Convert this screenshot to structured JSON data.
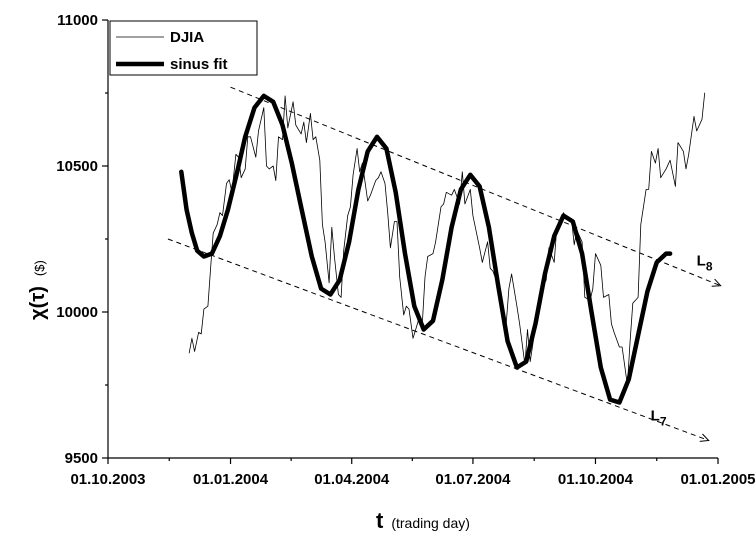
{
  "chart_data": {
    "type": "line",
    "title": "",
    "xlabel": {
      "symbol": "t",
      "text": "(trading day)"
    },
    "ylabel": {
      "symbol": "χ(τ)",
      "unit": "($)"
    },
    "xlim": [
      "2003-10-01",
      "2005-01-01"
    ],
    "ylim": [
      9500,
      11000
    ],
    "x_ticks": [
      "01.10.2003",
      "01.01.2004",
      "01.04.2004",
      "01.07.2004",
      "01.10.2004",
      "01.01.2005"
    ],
    "x_tick_dates": [
      "2003-10-01",
      "2004-01-01",
      "2004-04-01",
      "2004-07-01",
      "2004-10-01",
      "2005-01-01"
    ],
    "y_ticks": [
      "9500",
      "10000",
      "10500",
      "11000"
    ],
    "y_tick_values": [
      9500,
      10000,
      10500,
      11000
    ],
    "legend": {
      "placement": "top-left",
      "entries": [
        "DJIA",
        "sinus fit"
      ]
    },
    "series": [
      {
        "name": "DJIA",
        "style": "thin",
        "points": [
          [
            "2003-12-01",
            9860
          ],
          [
            "2003-12-03",
            9910
          ],
          [
            "2003-12-05",
            9865
          ],
          [
            "2003-12-08",
            9930
          ],
          [
            "2003-12-10",
            9925
          ],
          [
            "2003-12-12",
            10010
          ],
          [
            "2003-12-15",
            10020
          ],
          [
            "2003-12-17",
            10150
          ],
          [
            "2003-12-19",
            10270
          ],
          [
            "2003-12-22",
            10300
          ],
          [
            "2003-12-24",
            10340
          ],
          [
            "2003-12-26",
            10330
          ],
          [
            "2003-12-29",
            10440
          ],
          [
            "2003-12-31",
            10453
          ],
          [
            "2004-01-02",
            10410
          ],
          [
            "2004-01-05",
            10540
          ],
          [
            "2004-01-07",
            10530
          ],
          [
            "2004-01-09",
            10460
          ],
          [
            "2004-01-12",
            10490
          ],
          [
            "2004-01-14",
            10600
          ],
          [
            "2004-01-16",
            10600
          ],
          [
            "2004-01-20",
            10530
          ],
          [
            "2004-01-22",
            10620
          ],
          [
            "2004-01-26",
            10700
          ],
          [
            "2004-01-28",
            10500
          ],
          [
            "2004-01-30",
            10490
          ],
          [
            "2004-02-02",
            10500
          ],
          [
            "2004-02-04",
            10450
          ],
          [
            "2004-02-06",
            10600
          ],
          [
            "2004-02-09",
            10590
          ],
          [
            "2004-02-11",
            10740
          ],
          [
            "2004-02-13",
            10630
          ],
          [
            "2004-02-17",
            10720
          ],
          [
            "2004-02-19",
            10640
          ],
          [
            "2004-02-23",
            10610
          ],
          [
            "2004-02-25",
            10650
          ],
          [
            "2004-02-27",
            10580
          ],
          [
            "2004-03-01",
            10680
          ],
          [
            "2004-03-03",
            10590
          ],
          [
            "2004-03-05",
            10600
          ],
          [
            "2004-03-08",
            10520
          ],
          [
            "2004-03-10",
            10300
          ],
          [
            "2004-03-12",
            10240
          ],
          [
            "2004-03-15",
            10100
          ],
          [
            "2004-03-17",
            10290
          ],
          [
            "2004-03-19",
            10190
          ],
          [
            "2004-03-22",
            10060
          ],
          [
            "2004-03-24",
            10050
          ],
          [
            "2004-03-26",
            10210
          ],
          [
            "2004-03-29",
            10330
          ],
          [
            "2004-03-31",
            10360
          ],
          [
            "2004-04-02",
            10470
          ],
          [
            "2004-04-05",
            10560
          ],
          [
            "2004-04-07",
            10480
          ],
          [
            "2004-04-09",
            10510
          ],
          [
            "2004-04-13",
            10380
          ],
          [
            "2004-04-15",
            10400
          ],
          [
            "2004-04-19",
            10450
          ],
          [
            "2004-04-21",
            10460
          ],
          [
            "2004-04-23",
            10480
          ],
          [
            "2004-04-26",
            10440
          ],
          [
            "2004-04-28",
            10340
          ],
          [
            "2004-04-30",
            10220
          ],
          [
            "2004-05-03",
            10310
          ],
          [
            "2004-05-05",
            10310
          ],
          [
            "2004-05-07",
            10120
          ],
          [
            "2004-05-10",
            9990
          ],
          [
            "2004-05-12",
            10020
          ],
          [
            "2004-05-14",
            10010
          ],
          [
            "2004-05-17",
            9910
          ],
          [
            "2004-05-19",
            9940
          ],
          [
            "2004-05-21",
            9970
          ],
          [
            "2004-05-24",
            9960
          ],
          [
            "2004-05-26",
            10120
          ],
          [
            "2004-05-28",
            10190
          ],
          [
            "2004-06-01",
            10200
          ],
          [
            "2004-06-03",
            10240
          ],
          [
            "2004-06-07",
            10360
          ],
          [
            "2004-06-09",
            10370
          ],
          [
            "2004-06-11",
            10410
          ],
          [
            "2004-06-15",
            10400
          ],
          [
            "2004-06-17",
            10420
          ],
          [
            "2004-06-21",
            10370
          ],
          [
            "2004-06-23",
            10480
          ],
          [
            "2004-06-25",
            10370
          ],
          [
            "2004-06-29",
            10420
          ],
          [
            "2004-07-01",
            10330
          ],
          [
            "2004-07-06",
            10220
          ],
          [
            "2004-07-08",
            10170
          ],
          [
            "2004-07-12",
            10240
          ],
          [
            "2004-07-14",
            10150
          ],
          [
            "2004-07-16",
            10140
          ],
          [
            "2004-07-20",
            10090
          ],
          [
            "2004-07-22",
            10050
          ],
          [
            "2004-07-26",
            9960
          ],
          [
            "2004-07-28",
            10080
          ],
          [
            "2004-07-30",
            10130
          ],
          [
            "2004-08-03",
            10020
          ],
          [
            "2004-08-05",
            9960
          ],
          [
            "2004-08-09",
            9820
          ],
          [
            "2004-08-11",
            9940
          ],
          [
            "2004-08-13",
            9830
          ],
          [
            "2004-08-17",
            9950
          ],
          [
            "2004-08-19",
            10000
          ],
          [
            "2004-08-23",
            10090
          ],
          [
            "2004-08-25",
            10110
          ],
          [
            "2004-08-27",
            10220
          ],
          [
            "2004-08-31",
            10170
          ],
          [
            "2004-09-02",
            10290
          ],
          [
            "2004-09-07",
            10340
          ],
          [
            "2004-09-09",
            10320
          ],
          [
            "2004-09-13",
            10320
          ],
          [
            "2004-09-15",
            10230
          ],
          [
            "2004-09-17",
            10280
          ],
          [
            "2004-09-21",
            10240
          ],
          [
            "2004-09-23",
            10050
          ],
          [
            "2004-09-27",
            10040
          ],
          [
            "2004-09-29",
            10080
          ],
          [
            "2004-10-01",
            10200
          ],
          [
            "2004-10-05",
            10160
          ],
          [
            "2004-10-07",
            10050
          ],
          [
            "2004-10-11",
            10060
          ],
          [
            "2004-10-13",
            9960
          ],
          [
            "2004-10-15",
            9930
          ],
          [
            "2004-10-19",
            9880
          ],
          [
            "2004-10-21",
            9880
          ],
          [
            "2004-10-25",
            9750
          ],
          [
            "2004-10-27",
            9900
          ],
          [
            "2004-10-29",
            10030
          ],
          [
            "2004-11-02",
            10050
          ],
          [
            "2004-11-04",
            10300
          ],
          [
            "2004-11-08",
            10420
          ],
          [
            "2004-11-10",
            10420
          ],
          [
            "2004-11-12",
            10550
          ],
          [
            "2004-11-15",
            10510
          ],
          [
            "2004-11-17",
            10560
          ],
          [
            "2004-11-19",
            10460
          ],
          [
            "2004-11-23",
            10490
          ],
          [
            "2004-11-26",
            10520
          ],
          [
            "2004-11-30",
            10430
          ],
          [
            "2004-12-02",
            10580
          ],
          [
            "2004-12-06",
            10550
          ],
          [
            "2004-12-08",
            10490
          ],
          [
            "2004-12-10",
            10540
          ],
          [
            "2004-12-14",
            10670
          ],
          [
            "2004-12-16",
            10620
          ],
          [
            "2004-12-20",
            10660
          ],
          [
            "2004-12-22",
            10750
          ]
        ]
      },
      {
        "name": "sinus fit",
        "style": "thick",
        "points": [
          [
            "2003-11-25",
            10480
          ],
          [
            "2003-11-29",
            10350
          ],
          [
            "2003-12-03",
            10270
          ],
          [
            "2003-12-07",
            10210
          ],
          [
            "2003-12-12",
            10190
          ],
          [
            "2003-12-18",
            10200
          ],
          [
            "2003-12-24",
            10260
          ],
          [
            "2003-12-30",
            10350
          ],
          [
            "2004-01-06",
            10480
          ],
          [
            "2004-01-12",
            10600
          ],
          [
            "2004-01-19",
            10700
          ],
          [
            "2004-01-26",
            10740
          ],
          [
            "2004-02-02",
            10720
          ],
          [
            "2004-02-09",
            10640
          ],
          [
            "2004-02-16",
            10510
          ],
          [
            "2004-02-23",
            10360
          ],
          [
            "2004-03-02",
            10190
          ],
          [
            "2004-03-09",
            10080
          ],
          [
            "2004-03-16",
            10060
          ],
          [
            "2004-03-23",
            10110
          ],
          [
            "2004-03-30",
            10240
          ],
          [
            "2004-04-06",
            10420
          ],
          [
            "2004-04-13",
            10550
          ],
          [
            "2004-04-20",
            10600
          ],
          [
            "2004-04-27",
            10560
          ],
          [
            "2004-05-04",
            10410
          ],
          [
            "2004-05-11",
            10200
          ],
          [
            "2004-05-18",
            10020
          ],
          [
            "2004-05-25",
            9940
          ],
          [
            "2004-06-01",
            9970
          ],
          [
            "2004-06-08",
            10110
          ],
          [
            "2004-06-15",
            10290
          ],
          [
            "2004-06-22",
            10420
          ],
          [
            "2004-06-29",
            10470
          ],
          [
            "2004-07-06",
            10430
          ],
          [
            "2004-07-13",
            10290
          ],
          [
            "2004-07-20",
            10090
          ],
          [
            "2004-07-27",
            9900
          ],
          [
            "2004-08-03",
            9810
          ],
          [
            "2004-08-10",
            9830
          ],
          [
            "2004-08-17",
            9960
          ],
          [
            "2004-08-24",
            10130
          ],
          [
            "2004-08-31",
            10260
          ],
          [
            "2004-09-07",
            10330
          ],
          [
            "2004-09-14",
            10310
          ],
          [
            "2004-09-21",
            10200
          ],
          [
            "2004-09-28",
            10000
          ],
          [
            "2004-10-05",
            9810
          ],
          [
            "2004-10-12",
            9700
          ],
          [
            "2004-10-19",
            9690
          ],
          [
            "2004-10-26",
            9770
          ],
          [
            "2004-11-02",
            9920
          ],
          [
            "2004-11-09",
            10070
          ],
          [
            "2004-11-16",
            10170
          ],
          [
            "2004-11-23",
            10200
          ],
          [
            "2004-11-26",
            10200
          ]
        ]
      }
    ],
    "annotations": [
      {
        "label": "L",
        "subscript": "8",
        "line": [
          [
            "2004-01-01",
            10770
          ],
          [
            "2005-01-03",
            10090
          ]
        ]
      },
      {
        "label": "L",
        "subscript": "7",
        "line": [
          [
            "2003-11-15",
            10250
          ],
          [
            "2004-12-25",
            9560
          ]
        ]
      }
    ]
  }
}
